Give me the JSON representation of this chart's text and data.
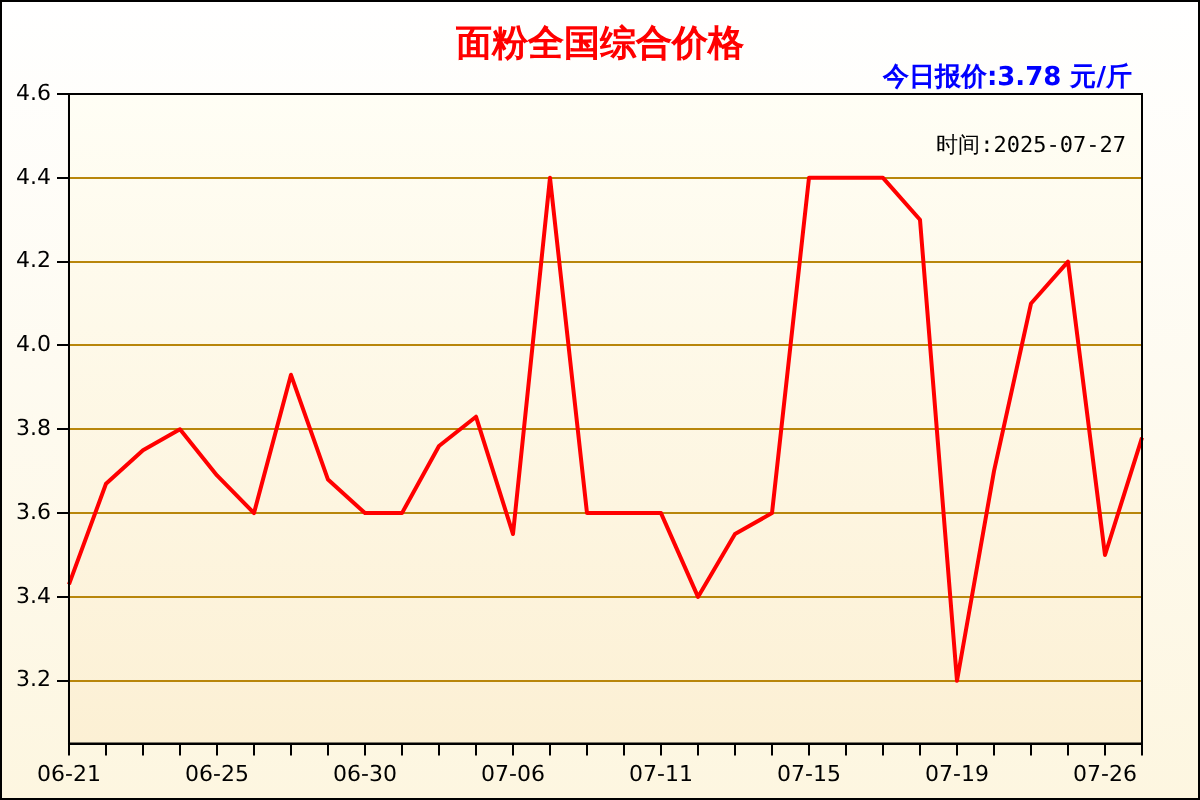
{
  "chart_data": {
    "type": "line",
    "title": "面粉全国综合价格",
    "annotations": [
      "今日报价:3.78 元/斤",
      "时间:2025-07-27"
    ],
    "categories": [
      "06-21",
      null,
      null,
      null,
      "06-25",
      null,
      null,
      null,
      "06-30",
      null,
      null,
      null,
      "07-06",
      null,
      null,
      null,
      "07-11",
      null,
      null,
      null,
      "07-15",
      null,
      null,
      null,
      "07-19",
      null,
      null,
      null,
      "07-26",
      null
    ],
    "series": [
      {
        "color": "#ff0000",
        "values": [
          3.43,
          3.67,
          3.75,
          3.8,
          3.69,
          3.6,
          3.93,
          3.68,
          3.6,
          3.6,
          3.76,
          3.83,
          3.55,
          4.4,
          3.6,
          3.6,
          3.6,
          3.4,
          3.55,
          3.6,
          4.4,
          4.4,
          4.4,
          4.3,
          3.2,
          3.7,
          4.1,
          4.2,
          3.5,
          3.78
        ]
      }
    ],
    "ylim": [
      3.05,
      4.6
    ],
    "yticks": [
      3.2,
      3.4,
      3.6,
      3.8,
      {
        "value": 4,
        "label": "4.0"
      },
      4.2,
      4.4,
      4.6
    ],
    "grid": "y",
    "legend": false,
    "marker": "none",
    "line_style": "solid"
  }
}
